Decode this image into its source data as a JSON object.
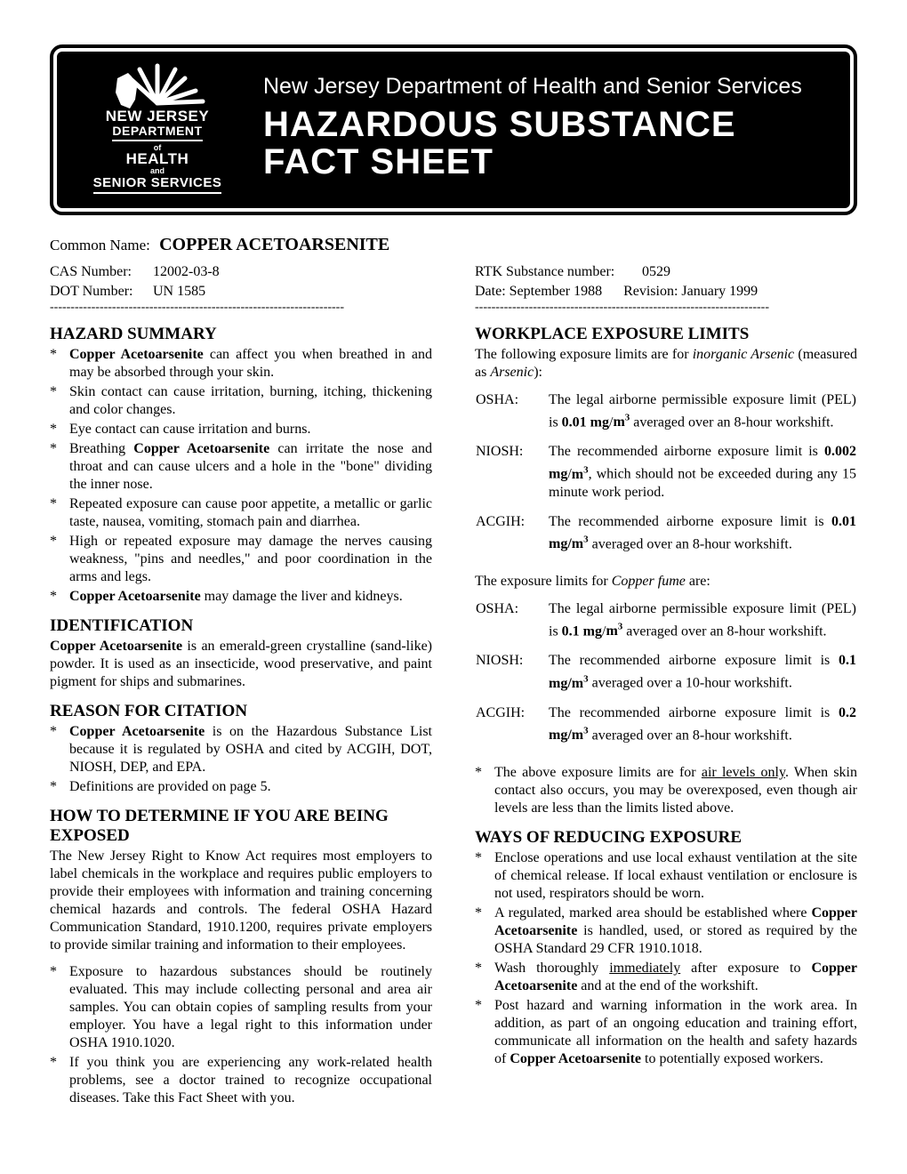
{
  "banner": {
    "dept_line": "New Jersey Department of Health and Senior Services",
    "title_line1": "HAZARDOUS SUBSTANCE",
    "title_line2": "FACT SHEET",
    "logo": {
      "state": "NEW JERSEY",
      "dept": "DEPARTMENT",
      "of": "of",
      "health": "HEALTH",
      "and": "and",
      "senior": "SENIOR SERVICES"
    }
  },
  "common_name": {
    "label": "Common Name:",
    "value": "COPPER ACETOARSENITE"
  },
  "meta_left": {
    "cas_label": "CAS Number:",
    "cas_value": "12002-03-8",
    "dot_label": "DOT Number:",
    "dot_value": "UN 1585"
  },
  "meta_right": {
    "rtk_label": "RTK Substance number:",
    "rtk_value": "0529",
    "date_label": "Date:",
    "date_value": "September 1988",
    "rev_label": "Revision:",
    "rev_value": "January 1999"
  },
  "dash_rule": "-----------------------------------------------------------------------",
  "hazard_summary": {
    "heading": "HAZARD SUMMARY",
    "items": [
      "<b>Copper Acetoarsenite</b> can affect you when breathed in and may be absorbed through your skin.",
      "Skin contact can cause irritation, burning, itching, thickening and color changes.",
      "Eye contact can cause irritation and burns.",
      "Breathing <b>Copper Acetoarsenite</b> can irritate the nose and throat and can cause ulcers and a hole in the \"bone\" dividing the inner nose.",
      "Repeated exposure can cause poor appetite, a metallic or garlic taste, nausea, vomiting, stomach pain and diarrhea.",
      "High or repeated exposure may damage the nerves causing weakness, \"pins and needles,\" and poor coordination in the arms and legs.",
      "<b>Copper Acetoarsenite</b> may damage the liver and kidneys."
    ]
  },
  "identification": {
    "heading": "IDENTIFICATION",
    "text": "<b>Copper Acetoarsenite</b> is an emerald-green crystalline (sand-like) powder.  It is used as an insecticide, wood preservative, and paint pigment for ships and submarines."
  },
  "reason": {
    "heading": "REASON FOR CITATION",
    "items": [
      "<b>Copper Acetoarsenite</b> is on the Hazardous Substance List because it is regulated by OSHA and cited by ACGIH, DOT, NIOSH, DEP, and EPA.",
      "Definitions are provided on page 5."
    ]
  },
  "determine": {
    "heading": "HOW TO DETERMINE IF YOU ARE BEING EXPOSED",
    "intro": "The New Jersey Right to Know Act requires most employers to label chemicals in the workplace and requires public employers to provide their employees with information and training concerning chemical hazards and controls.  The federal OSHA Hazard Communication Standard, 1910.1200, requires private employers to provide similar training and information to their employees.",
    "items": [
      "Exposure to hazardous substances should be routinely evaluated. This may include collecting personal and area air samples.  You can obtain copies of sampling results from your employer. You have a legal right to this information under OSHA 1910.1020.",
      "If you think you are experiencing any work-related health problems, see a doctor trained to recognize occupational diseases.  Take this Fact Sheet with you."
    ]
  },
  "limits": {
    "heading": "WORKPLACE EXPOSURE LIMITS",
    "intro": "The following exposure limits are for <i>inorganic Arsenic</i> (measured as <i>Arsenic</i>):",
    "arsenic": [
      {
        "label": "OSHA:",
        "text": "The legal airborne permissible exposure limit (PEL) is <b>0.01 mg</b>/<b>m<sup>3</sup></b> averaged over an 8-hour workshift."
      },
      {
        "label": "NIOSH:",
        "text": "The recommended airborne exposure limit is <b>0.002 mg</b>/<b>m<sup>3</sup></b>, which should not be exceeded during any 15 minute work period."
      },
      {
        "label": "ACGIH:",
        "text": "The recommended airborne exposure limit is <b>0.01 mg/m<sup>3</sup></b> averaged over an 8-hour workshift."
      }
    ],
    "copper_intro": "The exposure limits for <i>Copper fume</i> are:",
    "copper": [
      {
        "label": "OSHA:",
        "text": "The legal airborne permissible exposure limit (PEL) is <b>0.1 mg</b>/<b>m<sup>3</sup></b> averaged over an 8-hour workshift."
      },
      {
        "label": "NIOSH:",
        "text": "The recommended airborne exposure limit is <b>0.1 mg/m<sup>3</sup></b> averaged over a 10-hour workshift."
      },
      {
        "label": "ACGIH:",
        "text": "The recommended airborne exposure limit is <b>0.2 mg/m<sup>3</sup></b> averaged over an 8-hour workshift."
      }
    ],
    "note_items": [
      "The above exposure limits are for <u>air levels only</u>. When skin contact also occurs, you may be overexposed, even though air levels are less than the limits listed above."
    ]
  },
  "reducing": {
    "heading": "WAYS OF REDUCING EXPOSURE",
    "items": [
      "Enclose operations and use local exhaust ventilation at the site of chemical release.  If local exhaust ventilation or enclosure is not used, respirators should be worn.",
      "A regulated, marked area should be established where <b>Copper Acetoarsenite</b> is handled, used, or stored as required by the OSHA Standard 29 CFR 1910.1018.",
      "Wash thoroughly <u>immediately</u> after exposure to <b>Copper Acetoarsenite</b> and at the end of the workshift.",
      "Post hazard and warning information in the work area.  In addition, as part of an ongoing education and training effort, communicate all information on the health and safety hazards of <b>Copper Acetoarsenite</b> to potentially exposed workers."
    ]
  }
}
